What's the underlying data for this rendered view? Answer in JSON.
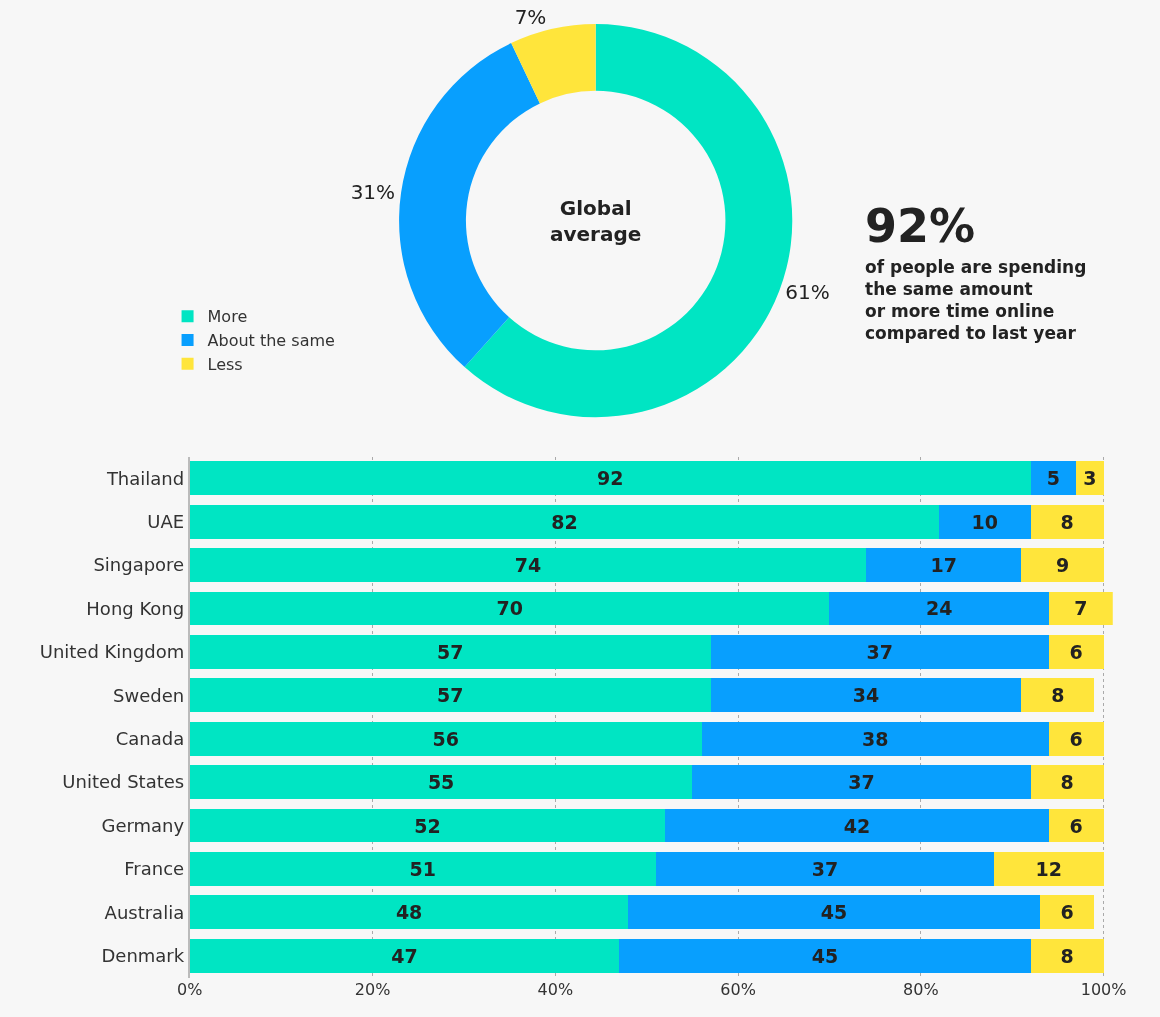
{
  "chart_data": [
    {
      "type": "donut",
      "categories": [
        "More",
        "About the same",
        "Less"
      ],
      "values": [
        61,
        31,
        7
      ],
      "colors": [
        "#00e5c3",
        "#089ffe",
        "#ffe53b"
      ],
      "value_labels": [
        "61%",
        "31%",
        "7%"
      ],
      "legend": "left",
      "annotations": [
        "Global\naverage",
        "92%",
        "of people are spending\nthe same amount\nor more time online\ncompared to last year"
      ]
    },
    {
      "type": "bar",
      "orientation": "horizontal",
      "stacked": true,
      "data_labels": true,
      "categories": [
        "Thailand",
        "UAE",
        "Singapore",
        "Hong Kong",
        "United Kingdom",
        "Sweden",
        "Canada",
        "United States",
        "Germany",
        "France",
        "Australia",
        "Denmark"
      ],
      "series": [
        {
          "color": "#00e5c3",
          "values": [
            92,
            82,
            74,
            70,
            57,
            57,
            56,
            55,
            52,
            51,
            48,
            47
          ]
        },
        {
          "color": "#089ffe",
          "values": [
            5,
            10,
            17,
            24,
            37,
            34,
            38,
            37,
            42,
            37,
            45,
            45
          ]
        },
        {
          "color": "#ffe53b",
          "values": [
            3,
            8,
            9,
            7,
            6,
            8,
            6,
            8,
            6,
            12,
            6,
            8
          ]
        }
      ],
      "xlim": [
        0,
        101
      ],
      "xticks": [
        {
          "value": 0,
          "label": "0%"
        },
        {
          "value": 20,
          "label": "20%"
        },
        {
          "value": 40,
          "label": "40%"
        },
        {
          "value": 60,
          "label": "60%"
        },
        {
          "value": 80,
          "label": "80%"
        },
        {
          "value": 100,
          "label": "100%"
        }
      ],
      "grid": "x"
    }
  ]
}
